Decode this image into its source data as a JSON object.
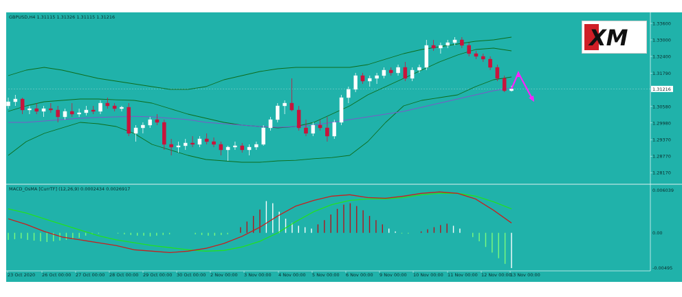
{
  "price_panel": {
    "info": "GBPUSD,H4  1.31115 1.31326 1.31115 1.31216",
    "current_price_label": "1.31216"
  },
  "indicator_panel": {
    "info": "MACD_OsMA [CurrTF] (12,26,9) 0.0002434 0.0026917"
  },
  "logo": {
    "text": "XM"
  },
  "colors": {
    "background": "#20b2aa",
    "bull_candle": "#ffffff",
    "bear_candle": "#c8143c",
    "bollinger": "#0d6b1a",
    "moving_average": "#7b58c8",
    "macd_fast": "#c81e1e",
    "macd_signal": "#22e022",
    "hist_green": "#7cfc7c",
    "hist_red": "#b0141e",
    "hist_white": "#ffffff",
    "forecast_arrow": "#ff22ff"
  },
  "chart_data": [
    {
      "type": "candlestick",
      "symbol": "GBPUSD",
      "timeframe": "H4",
      "ylim": [
        1.278,
        1.339
      ],
      "price_ticks": [
        "1.33600",
        "1.33000",
        "1.32400",
        "1.31790",
        "1.31216",
        "1.30580",
        "1.29980",
        "1.29370",
        "1.28770",
        "1.28170"
      ],
      "x_ticks": [
        "23 Oct 2020",
        "26 Oct 00:00",
        "27 Oct 00:00",
        "28 Oct 00:00",
        "29 Oct 00:00",
        "30 Oct 00:00",
        "2 Nov 00:00",
        "3 Nov 00:00",
        "4 Nov 00:00",
        "5 Nov 00:00",
        "6 Nov 00:00",
        "9 Nov 00:00",
        "10 Nov 00:00",
        "11 Nov 00:00",
        "12 Nov 00:00",
        "13 Nov 00:00"
      ],
      "candles": [
        [
          1.306,
          1.309,
          1.305,
          1.3075
        ],
        [
          1.3075,
          1.31,
          1.306,
          1.3085
        ],
        [
          1.3085,
          1.309,
          1.303,
          1.3045
        ],
        [
          1.3045,
          1.306,
          1.303,
          1.305
        ],
        [
          1.305,
          1.307,
          1.303,
          1.304
        ],
        [
          1.304,
          1.306,
          1.302,
          1.305
        ],
        [
          1.305,
          1.307,
          1.3035,
          1.3045
        ],
        [
          1.3045,
          1.306,
          1.3,
          1.302
        ],
        [
          1.302,
          1.305,
          1.301,
          1.304
        ],
        [
          1.304,
          1.307,
          1.302,
          1.303
        ],
        [
          1.303,
          1.305,
          1.302,
          1.3035
        ],
        [
          1.3035,
          1.306,
          1.3025,
          1.3045
        ],
        [
          1.3045,
          1.306,
          1.303,
          1.304
        ],
        [
          1.304,
          1.308,
          1.303,
          1.307
        ],
        [
          1.307,
          1.309,
          1.305,
          1.306
        ],
        [
          1.306,
          1.307,
          1.304,
          1.305
        ],
        [
          1.305,
          1.306,
          1.304,
          1.3055
        ],
        [
          1.3055,
          1.307,
          1.295,
          1.296
        ],
        [
          1.296,
          1.299,
          1.293,
          1.298
        ],
        [
          1.298,
          1.3,
          1.296,
          1.299
        ],
        [
          1.299,
          1.302,
          1.298,
          1.301
        ],
        [
          1.301,
          1.303,
          1.299,
          1.3
        ],
        [
          1.3,
          1.301,
          1.29,
          1.292
        ],
        [
          1.292,
          1.294,
          1.288,
          1.291
        ],
        [
          1.291,
          1.293,
          1.289,
          1.2915
        ],
        [
          1.2915,
          1.294,
          1.29,
          1.2925
        ],
        [
          1.2925,
          1.295,
          1.291,
          1.292
        ],
        [
          1.292,
          1.295,
          1.291,
          1.294
        ],
        [
          1.294,
          1.296,
          1.292,
          1.293
        ],
        [
          1.293,
          1.2945,
          1.291,
          1.292
        ],
        [
          1.292,
          1.293,
          1.288,
          1.29
        ],
        [
          1.29,
          1.2915,
          1.286,
          1.291
        ],
        [
          1.291,
          1.293,
          1.29,
          1.2915
        ],
        [
          1.2915,
          1.2925,
          1.289,
          1.29
        ],
        [
          1.29,
          1.292,
          1.288,
          1.291
        ],
        [
          1.291,
          1.293,
          1.29,
          1.292
        ],
        [
          1.292,
          1.299,
          1.2915,
          1.298
        ],
        [
          1.298,
          1.302,
          1.297,
          1.301
        ],
        [
          1.301,
          1.307,
          1.3,
          1.306
        ],
        [
          1.306,
          1.308,
          1.303,
          1.307
        ],
        [
          1.307,
          1.316,
          1.304,
          1.3045
        ],
        [
          1.3045,
          1.306,
          1.297,
          1.298
        ],
        [
          1.298,
          1.301,
          1.295,
          1.296
        ],
        [
          1.296,
          1.3,
          1.295,
          1.299
        ],
        [
          1.299,
          1.301,
          1.297,
          1.298
        ],
        [
          1.298,
          1.302,
          1.293,
          1.295
        ],
        [
          1.295,
          1.301,
          1.294,
          1.3
        ],
        [
          1.3,
          1.31,
          1.299,
          1.309
        ],
        [
          1.309,
          1.313,
          1.307,
          1.312
        ],
        [
          1.312,
          1.318,
          1.311,
          1.317
        ],
        [
          1.317,
          1.318,
          1.314,
          1.315
        ],
        [
          1.315,
          1.317,
          1.313,
          1.316
        ],
        [
          1.316,
          1.318,
          1.314,
          1.317
        ],
        [
          1.317,
          1.32,
          1.316,
          1.319
        ],
        [
          1.319,
          1.32,
          1.317,
          1.318
        ],
        [
          1.318,
          1.321,
          1.317,
          1.32
        ],
        [
          1.32,
          1.322,
          1.315,
          1.316
        ],
        [
          1.316,
          1.32,
          1.315,
          1.319
        ],
        [
          1.319,
          1.321,
          1.318,
          1.32
        ],
        [
          1.32,
          1.33,
          1.319,
          1.328
        ],
        [
          1.328,
          1.33,
          1.326,
          1.327
        ],
        [
          1.327,
          1.329,
          1.325,
          1.328
        ],
        [
          1.328,
          1.33,
          1.327,
          1.329
        ],
        [
          1.329,
          1.331,
          1.328,
          1.33
        ],
        [
          1.33,
          1.331,
          1.327,
          1.328
        ],
        [
          1.328,
          1.329,
          1.324,
          1.325
        ],
        [
          1.325,
          1.326,
          1.323,
          1.324
        ],
        [
          1.324,
          1.325,
          1.322,
          1.323
        ],
        [
          1.323,
          1.324,
          1.319,
          1.32
        ],
        [
          1.32,
          1.321,
          1.315,
          1.316
        ],
        [
          1.316,
          1.317,
          1.311,
          1.3115
        ],
        [
          1.3115,
          1.3133,
          1.3112,
          1.3122
        ]
      ],
      "bollinger_upper": [
        1.317,
        1.319,
        1.32,
        1.319,
        1.3175,
        1.316,
        1.315,
        1.314,
        1.313,
        1.312,
        1.312,
        1.313,
        1.3155,
        1.317,
        1.3185,
        1.3195,
        1.32,
        1.32,
        1.32,
        1.32,
        1.321,
        1.323,
        1.325,
        1.3265,
        1.3275,
        1.3285,
        1.3295,
        1.33,
        1.331
      ],
      "bollinger_middle": [
        1.304,
        1.306,
        1.3075,
        1.308,
        1.3085,
        1.3085,
        1.3082,
        1.308,
        1.307,
        1.305,
        1.303,
        1.3015,
        1.3,
        1.299,
        1.2985,
        1.298,
        1.2985,
        1.3,
        1.303,
        1.306,
        1.31,
        1.313,
        1.316,
        1.319,
        1.322,
        1.3245,
        1.3265,
        1.327,
        1.326
      ],
      "bollinger_lower": [
        1.288,
        1.293,
        1.296,
        1.298,
        1.3,
        1.2995,
        1.2985,
        1.296,
        1.292,
        1.29,
        1.288,
        1.2865,
        1.286,
        1.2855,
        1.2855,
        1.286,
        1.2862,
        1.2868,
        1.2872,
        1.288,
        1.293,
        1.3,
        1.306,
        1.308,
        1.309,
        1.31,
        1.313,
        1.3155,
        1.3165
      ],
      "moving_average": [
        1.3,
        1.3,
        1.3005,
        1.301,
        1.3015,
        1.3018,
        1.302,
        1.3022,
        1.302,
        1.3015,
        1.301,
        1.3,
        1.2995,
        1.299,
        1.2985,
        1.2982,
        1.2985,
        1.299,
        1.3,
        1.301,
        1.302,
        1.303,
        1.304,
        1.3055,
        1.307,
        1.3085,
        1.31,
        1.3115,
        1.3125
      ],
      "forecast_arrow": [
        1.3122,
        1.318,
        1.3082
      ]
    },
    {
      "type": "macd_osma",
      "params": "(12,26,9)",
      "ylim": [
        -0.0052,
        0.0065
      ],
      "y_ticks": [
        "0.006039",
        "0.00",
        "-0.00495"
      ],
      "histogram": [
        -0.001,
        -0.0009,
        -0.0008,
        -0.001,
        -0.0011,
        -0.0012,
        -0.0013,
        -0.0012,
        -0.0011,
        -0.001,
        -0.0009,
        -0.0007,
        -0.0004,
        -0.0002,
        -0.0001,
        0.0,
        0.0,
        -0.0001,
        -0.0002,
        -0.0003,
        -0.0004,
        -0.0004,
        -0.0005,
        -0.0004,
        -0.0003,
        -0.0002,
        0.0,
        0.0,
        0.0,
        -0.0002,
        -0.0003,
        -0.0004,
        -0.0004,
        -0.0003,
        -0.0002,
        0.0,
        0.0008,
        0.0016,
        0.0024,
        0.0033,
        0.0045,
        0.0042,
        0.003,
        0.002,
        0.0014,
        0.001,
        0.0008,
        0.0006,
        0.0012,
        0.0018,
        0.0026,
        0.0034,
        0.004,
        0.0042,
        0.0038,
        0.0032,
        0.0024,
        0.0018,
        0.0012,
        0.0006,
        0.0002,
        -0.0001,
        -0.0001,
        0.0,
        0.0002,
        0.0005,
        0.0008,
        0.0011,
        0.0013,
        0.001,
        0.0006,
        0.0,
        -0.0006,
        -0.0012,
        -0.002,
        -0.0028,
        -0.0036,
        -0.0044,
        -0.005
      ],
      "fast_line": [
        0.002,
        0.0012,
        0.0002,
        -0.0006,
        -0.001,
        -0.0014,
        -0.0018,
        -0.0024,
        -0.0026,
        -0.0028,
        -0.0026,
        -0.0022,
        -0.0015,
        -0.0005,
        0.0008,
        0.0024,
        0.0038,
        0.0046,
        0.0052,
        0.0054,
        0.005,
        0.0049,
        0.0052,
        0.0056,
        0.0058,
        0.0056,
        0.0048,
        0.0032,
        0.0014
      ],
      "signal_line": [
        0.0034,
        0.0028,
        0.002,
        0.0012,
        0.0004,
        -0.0004,
        -0.001,
        -0.0014,
        -0.0018,
        -0.0021,
        -0.0024,
        -0.0026,
        -0.0025,
        -0.002,
        -0.0012,
        0.0,
        0.0016,
        0.003,
        0.004,
        0.0046,
        0.0048,
        0.0048,
        0.005,
        0.0054,
        0.0056,
        0.0056,
        0.0052,
        0.0044,
        0.0034
      ]
    }
  ]
}
